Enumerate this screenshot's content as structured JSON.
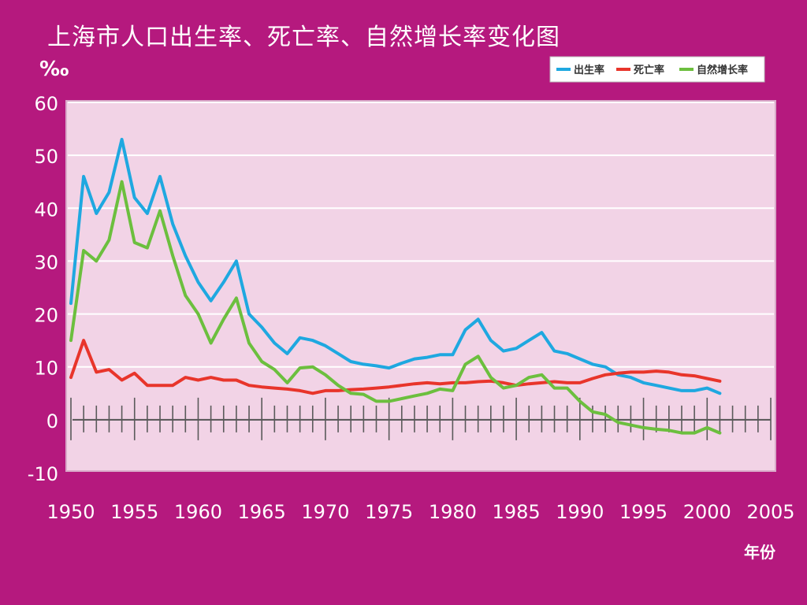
{
  "title": "上海市人口出生率、死亡率、自然增长率变化图",
  "chart_data": {
    "type": "line",
    "title": "上海市人口出生率、死亡率、自然增长率变化图",
    "ylabel": "‰",
    "xlabel": "年份",
    "ylim": [
      -10,
      60
    ],
    "xlim": [
      1950,
      2005
    ],
    "yticks": [
      -10,
      0,
      10,
      20,
      30,
      40,
      50,
      60
    ],
    "xticks": [
      1950,
      1955,
      1960,
      1965,
      1970,
      1975,
      1980,
      1985,
      1990,
      1995,
      2000,
      2005
    ],
    "grid": true,
    "legend_position": "top-right",
    "series": [
      {
        "name": "出生率",
        "color": "#1fa8e0",
        "x": [
          1950,
          1951,
          1952,
          1953,
          1954,
          1955,
          1956,
          1957,
          1958,
          1959,
          1960,
          1961,
          1962,
          1963,
          1964,
          1965,
          1966,
          1967,
          1968,
          1969,
          1970,
          1971,
          1972,
          1973,
          1974,
          1975,
          1976,
          1977,
          1978,
          1979,
          1980,
          1981,
          1982,
          1983,
          1984,
          1985,
          1986,
          1987,
          1988,
          1989,
          1990,
          1991,
          1992,
          1993,
          1994,
          1995,
          1996,
          1997,
          1998,
          1999,
          2000,
          2001
        ],
        "values": [
          22,
          46,
          39,
          43,
          53,
          42,
          39,
          46,
          37,
          31,
          26,
          22.5,
          26,
          30,
          20,
          17.5,
          14.5,
          12.5,
          15.5,
          15,
          14,
          12.5,
          11,
          10.5,
          10.2,
          9.8,
          10.7,
          11.5,
          11.8,
          12.3,
          12.3,
          17,
          19,
          15,
          13,
          13.5,
          15,
          16.5,
          13,
          12.5,
          11.5,
          10.5,
          10,
          8.5,
          8,
          7,
          6.5,
          6,
          5.5,
          5.5,
          6,
          5
        ]
      },
      {
        "name": "死亡率",
        "color": "#e8352b",
        "x": [
          1950,
          1951,
          1952,
          1953,
          1954,
          1955,
          1956,
          1957,
          1958,
          1959,
          1960,
          1961,
          1962,
          1963,
          1964,
          1965,
          1966,
          1967,
          1968,
          1969,
          1970,
          1971,
          1972,
          1973,
          1974,
          1975,
          1976,
          1977,
          1978,
          1979,
          1980,
          1981,
          1982,
          1983,
          1984,
          1985,
          1986,
          1987,
          1988,
          1989,
          1990,
          1991,
          1992,
          1993,
          1994,
          1995,
          1996,
          1997,
          1998,
          1999,
          2000,
          2001
        ],
        "values": [
          8,
          15,
          9,
          9.5,
          7.5,
          8.8,
          6.5,
          6.5,
          6.5,
          8,
          7.5,
          8,
          7.5,
          7.5,
          6.5,
          6.2,
          6,
          5.8,
          5.5,
          5,
          5.5,
          5.5,
          5.7,
          5.8,
          6,
          6.2,
          6.5,
          6.8,
          7,
          6.8,
          7,
          7,
          7.2,
          7.3,
          7,
          6.5,
          6.8,
          7,
          7.2,
          7,
          7,
          7.8,
          8.5,
          8.8,
          9,
          9,
          9.2,
          9,
          8.5,
          8.3,
          7.8,
          7.3
        ]
      },
      {
        "name": "自然增长率",
        "color": "#6cbf3e",
        "x": [
          1950,
          1951,
          1952,
          1953,
          1954,
          1955,
          1956,
          1957,
          1958,
          1959,
          1960,
          1961,
          1962,
          1963,
          1964,
          1965,
          1966,
          1967,
          1968,
          1969,
          1970,
          1971,
          1972,
          1973,
          1974,
          1975,
          1976,
          1977,
          1978,
          1979,
          1980,
          1981,
          1982,
          1983,
          1984,
          1985,
          1986,
          1987,
          1988,
          1989,
          1990,
          1991,
          1992,
          1993,
          1994,
          1995,
          1996,
          1997,
          1998,
          1999,
          2000,
          2001
        ],
        "values": [
          15,
          32,
          30,
          34,
          45,
          33.5,
          32.5,
          39.5,
          31,
          23.5,
          20,
          14.5,
          19,
          23,
          14.5,
          11,
          9.5,
          7,
          9.8,
          10,
          8.5,
          6.5,
          5,
          4.8,
          3.5,
          3.5,
          4,
          4.5,
          5,
          5.8,
          5.5,
          10.5,
          12,
          8,
          6,
          6.5,
          8,
          8.5,
          6,
          6,
          3.5,
          1.5,
          1,
          -0.5,
          -1,
          -1.5,
          -1.8,
          -2,
          -2.5,
          -2.5,
          -1.5,
          -2.5
        ]
      }
    ]
  }
}
